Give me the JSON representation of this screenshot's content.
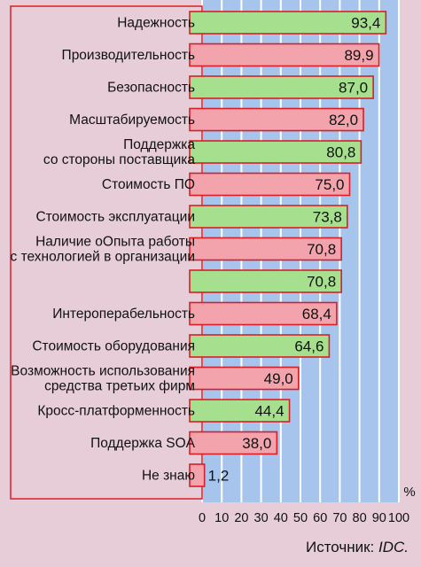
{
  "chart_data": {
    "type": "bar",
    "orientation": "horizontal",
    "categories": [
      [
        "Надежность"
      ],
      [
        "Производительность"
      ],
      [
        "Безопасность"
      ],
      [
        "Масштабируемость"
      ],
      [
        "Поддержка",
        "со стороны поставщика"
      ],
      [
        "Стоимость ПО"
      ],
      [
        "Стоимость эксплуатации"
      ],
      [
        "Наличие оОпыта работы",
        "с технологией в организации"
      ],
      [
        ""
      ],
      [
        "Интероперабельность"
      ],
      [
        "Стоимость оборудования"
      ],
      [
        "Возможность использования",
        "средства третьих фирм"
      ],
      [
        "Кросс-платформенность"
      ],
      [
        "Поддержка SOA"
      ],
      [
        "Не знаю"
      ]
    ],
    "values": [
      93.4,
      89.9,
      87.0,
      82.0,
      80.8,
      75.0,
      73.8,
      70.8,
      70.8,
      68.4,
      64.6,
      49.0,
      44.4,
      38.0,
      1.2
    ],
    "value_labels": [
      "93,4",
      "89,9",
      "87,0",
      "82,0",
      "80,8",
      "75,0",
      "73,8",
      "70,8",
      "70,8",
      "68,4",
      "64,6",
      "49,0",
      "44,4",
      "38,0",
      "1,2"
    ],
    "bar_colors": [
      "#a6e08e",
      "#f2a3ac",
      "#a6e08e",
      "#f2a3ac",
      "#a6e08e",
      "#f2a3ac",
      "#a6e08e",
      "#f2a3ac",
      "#a6e08e",
      "#f2a3ac",
      "#a6e08e",
      "#f2a3ac",
      "#a6e08e",
      "#f2a3ac",
      "#f2a3ac"
    ],
    "x_ticks": [
      0,
      10,
      20,
      30,
      40,
      50,
      60,
      70,
      80,
      90,
      100
    ],
    "xlim": [
      0,
      100
    ],
    "unit": "%",
    "grid": true,
    "colors": {
      "plot_background": "#a7c5ec",
      "grid": "#ffffff",
      "label_panel": "#e7cdd8",
      "border": "#d81f26"
    }
  },
  "source": {
    "prefix": "Источник: ",
    "name": "IDC."
  }
}
